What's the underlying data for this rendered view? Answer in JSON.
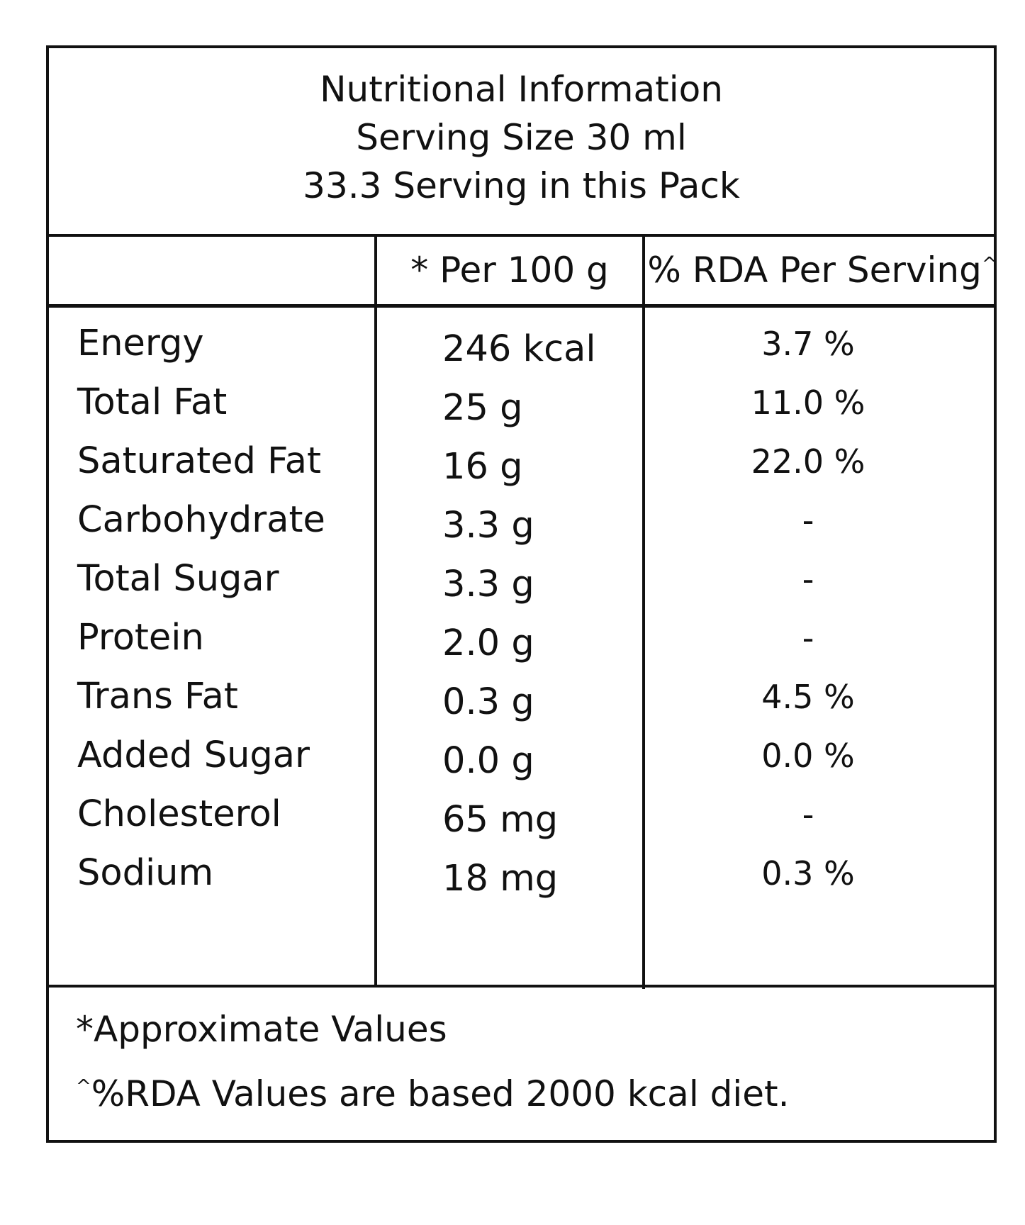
{
  "header": {
    "title": "Nutritional Information",
    "serving_size": "Serving Size 30 ml",
    "servings_per_pack": "33.3 Serving in this Pack"
  },
  "columns": {
    "per_100g": "* Per 100 g",
    "rda_per_serving": "% RDA Per Serving",
    "rda_marker": "^"
  },
  "rows": [
    {
      "name": "Energy",
      "per_100g": "246 kcal",
      "rda": "3.7 %"
    },
    {
      "name": "Total Fat",
      "per_100g": "25 g",
      "rda": "11.0 %"
    },
    {
      "name": "Saturated Fat",
      "per_100g": "16 g",
      "rda": "22.0 %"
    },
    {
      "name": "Carbohydrate",
      "per_100g": "3.3 g",
      "rda": "-"
    },
    {
      "name": "Total Sugar",
      "per_100g": "3.3 g",
      "rda": "-"
    },
    {
      "name": "Protein",
      "per_100g": "2.0 g",
      "rda": "-"
    },
    {
      "name": "Trans Fat",
      "per_100g": "0.3 g",
      "rda": "4.5 %"
    },
    {
      "name": "Added Sugar",
      "per_100g": "0.0 g",
      "rda": "0.0 %"
    },
    {
      "name": "Cholesterol",
      "per_100g": "65 mg",
      "rda": "-"
    },
    {
      "name": "Sodium",
      "per_100g": "18 mg",
      "rda": "0.3 %"
    }
  ],
  "footer": {
    "approx_note": "*Approximate Values",
    "rda_marker": "^",
    "rda_note": "%RDA Values are based 2000 kcal diet."
  }
}
